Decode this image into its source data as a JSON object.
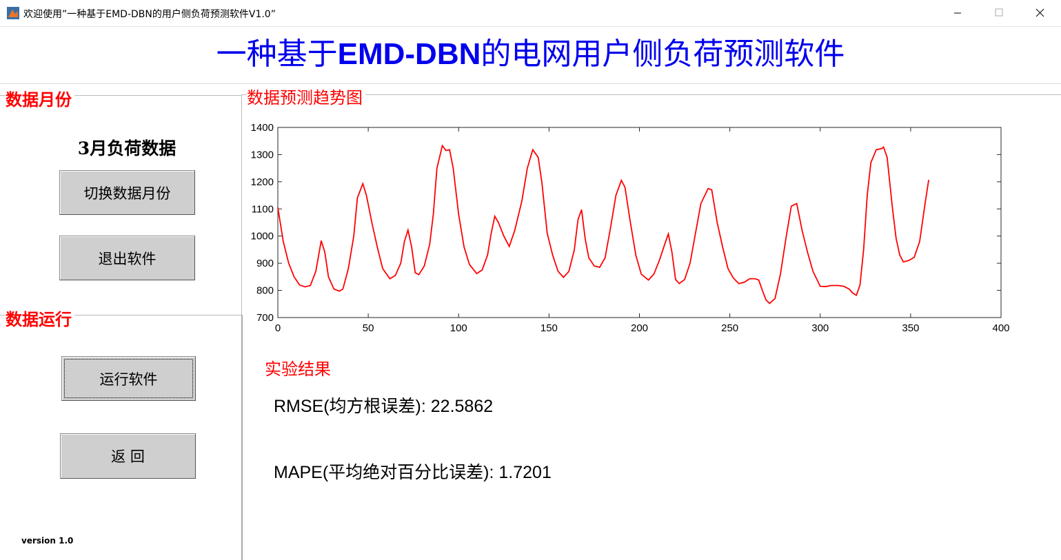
{
  "window": {
    "title": "欢迎使用”一种基于EMD-DBN的用户侧负荷预测软件V1.0”"
  },
  "header": {
    "title_parts": [
      "一种基于",
      "EMD-DBN",
      "的电网用户侧负荷预测软件"
    ]
  },
  "left_panel": {
    "month_group": {
      "label": "数据月份",
      "current": "3月负荷数据",
      "buttons": [
        "切换数据月份",
        "退出软件"
      ]
    },
    "run_group": {
      "label": "数据运行",
      "buttons": [
        "运行软件",
        "返 回"
      ]
    },
    "version": "version 1.0"
  },
  "results": {
    "label": "实验结果",
    "lines": [
      "RMSE(均方根误差):  22.5862",
      "MAPE(平均绝对百分比误差): 1.7201"
    ]
  },
  "chart_data": {
    "type": "line",
    "title": "数据预测趋势图",
    "color": "#ff0000",
    "xlim": [
      0,
      400
    ],
    "xticks": [
      0,
      50,
      100,
      150,
      200,
      250,
      300,
      350,
      400
    ],
    "ylim": [
      700,
      1400
    ],
    "yticks": [
      700,
      800,
      900,
      1000,
      1100,
      1200,
      1300,
      1400
    ],
    "x": [
      0,
      3,
      6,
      9,
      12,
      15,
      18,
      21,
      24,
      26,
      28,
      31,
      34,
      36,
      39,
      42,
      44,
      47,
      49,
      52,
      55,
      58,
      62,
      65,
      68,
      70,
      72,
      74,
      76,
      78,
      81,
      84,
      86,
      88,
      91,
      93,
      95,
      97,
      100,
      103,
      106,
      110,
      113,
      116,
      118,
      120,
      122,
      125,
      128,
      131,
      135,
      138,
      141,
      144,
      146,
      149,
      152,
      155,
      158,
      161,
      164,
      166,
      168,
      170,
      172,
      175,
      178,
      181,
      184,
      187,
      190,
      192,
      195,
      198,
      201,
      205,
      208,
      211,
      214,
      216,
      218,
      220,
      222,
      225,
      228,
      231,
      234,
      238,
      240,
      243,
      246,
      249,
      252,
      255,
      258,
      261,
      264,
      266,
      268,
      270,
      272,
      275,
      278,
      281,
      284,
      287,
      290,
      293,
      296,
      300,
      303,
      306,
      310,
      313,
      316,
      318,
      320,
      322,
      324,
      326,
      328,
      331,
      334,
      335,
      337,
      340,
      342,
      344,
      346,
      349,
      352,
      355,
      358,
      360
    ],
    "values": [
      1105,
      980,
      900,
      850,
      820,
      813,
      818,
      870,
      983,
      940,
      850,
      805,
      797,
      805,
      880,
      1000,
      1140,
      1193,
      1150,
      1050,
      960,
      880,
      843,
      855,
      900,
      980,
      1022,
      960,
      865,
      858,
      890,
      970,
      1080,
      1250,
      1333,
      1315,
      1318,
      1250,
      1080,
      960,
      895,
      862,
      875,
      930,
      1010,
      1073,
      1050,
      1000,
      962,
      1020,
      1130,
      1250,
      1318,
      1290,
      1200,
      1010,
      930,
      870,
      848,
      870,
      950,
      1060,
      1097,
      990,
      920,
      890,
      885,
      920,
      1030,
      1150,
      1205,
      1180,
      1050,
      930,
      860,
      838,
      860,
      910,
      970,
      1008,
      940,
      840,
      825,
      840,
      900,
      1010,
      1120,
      1175,
      1170,
      1050,
      960,
      880,
      845,
      825,
      830,
      843,
      843,
      838,
      800,
      765,
      752,
      770,
      860,
      990,
      1110,
      1120,
      1020,
      940,
      870,
      815,
      814,
      818,
      818,
      815,
      805,
      790,
      782,
      820,
      950,
      1150,
      1270,
      1318,
      1322,
      1328,
      1290,
      1100,
      990,
      930,
      905,
      910,
      922,
      980,
      1120,
      1207
    ]
  }
}
